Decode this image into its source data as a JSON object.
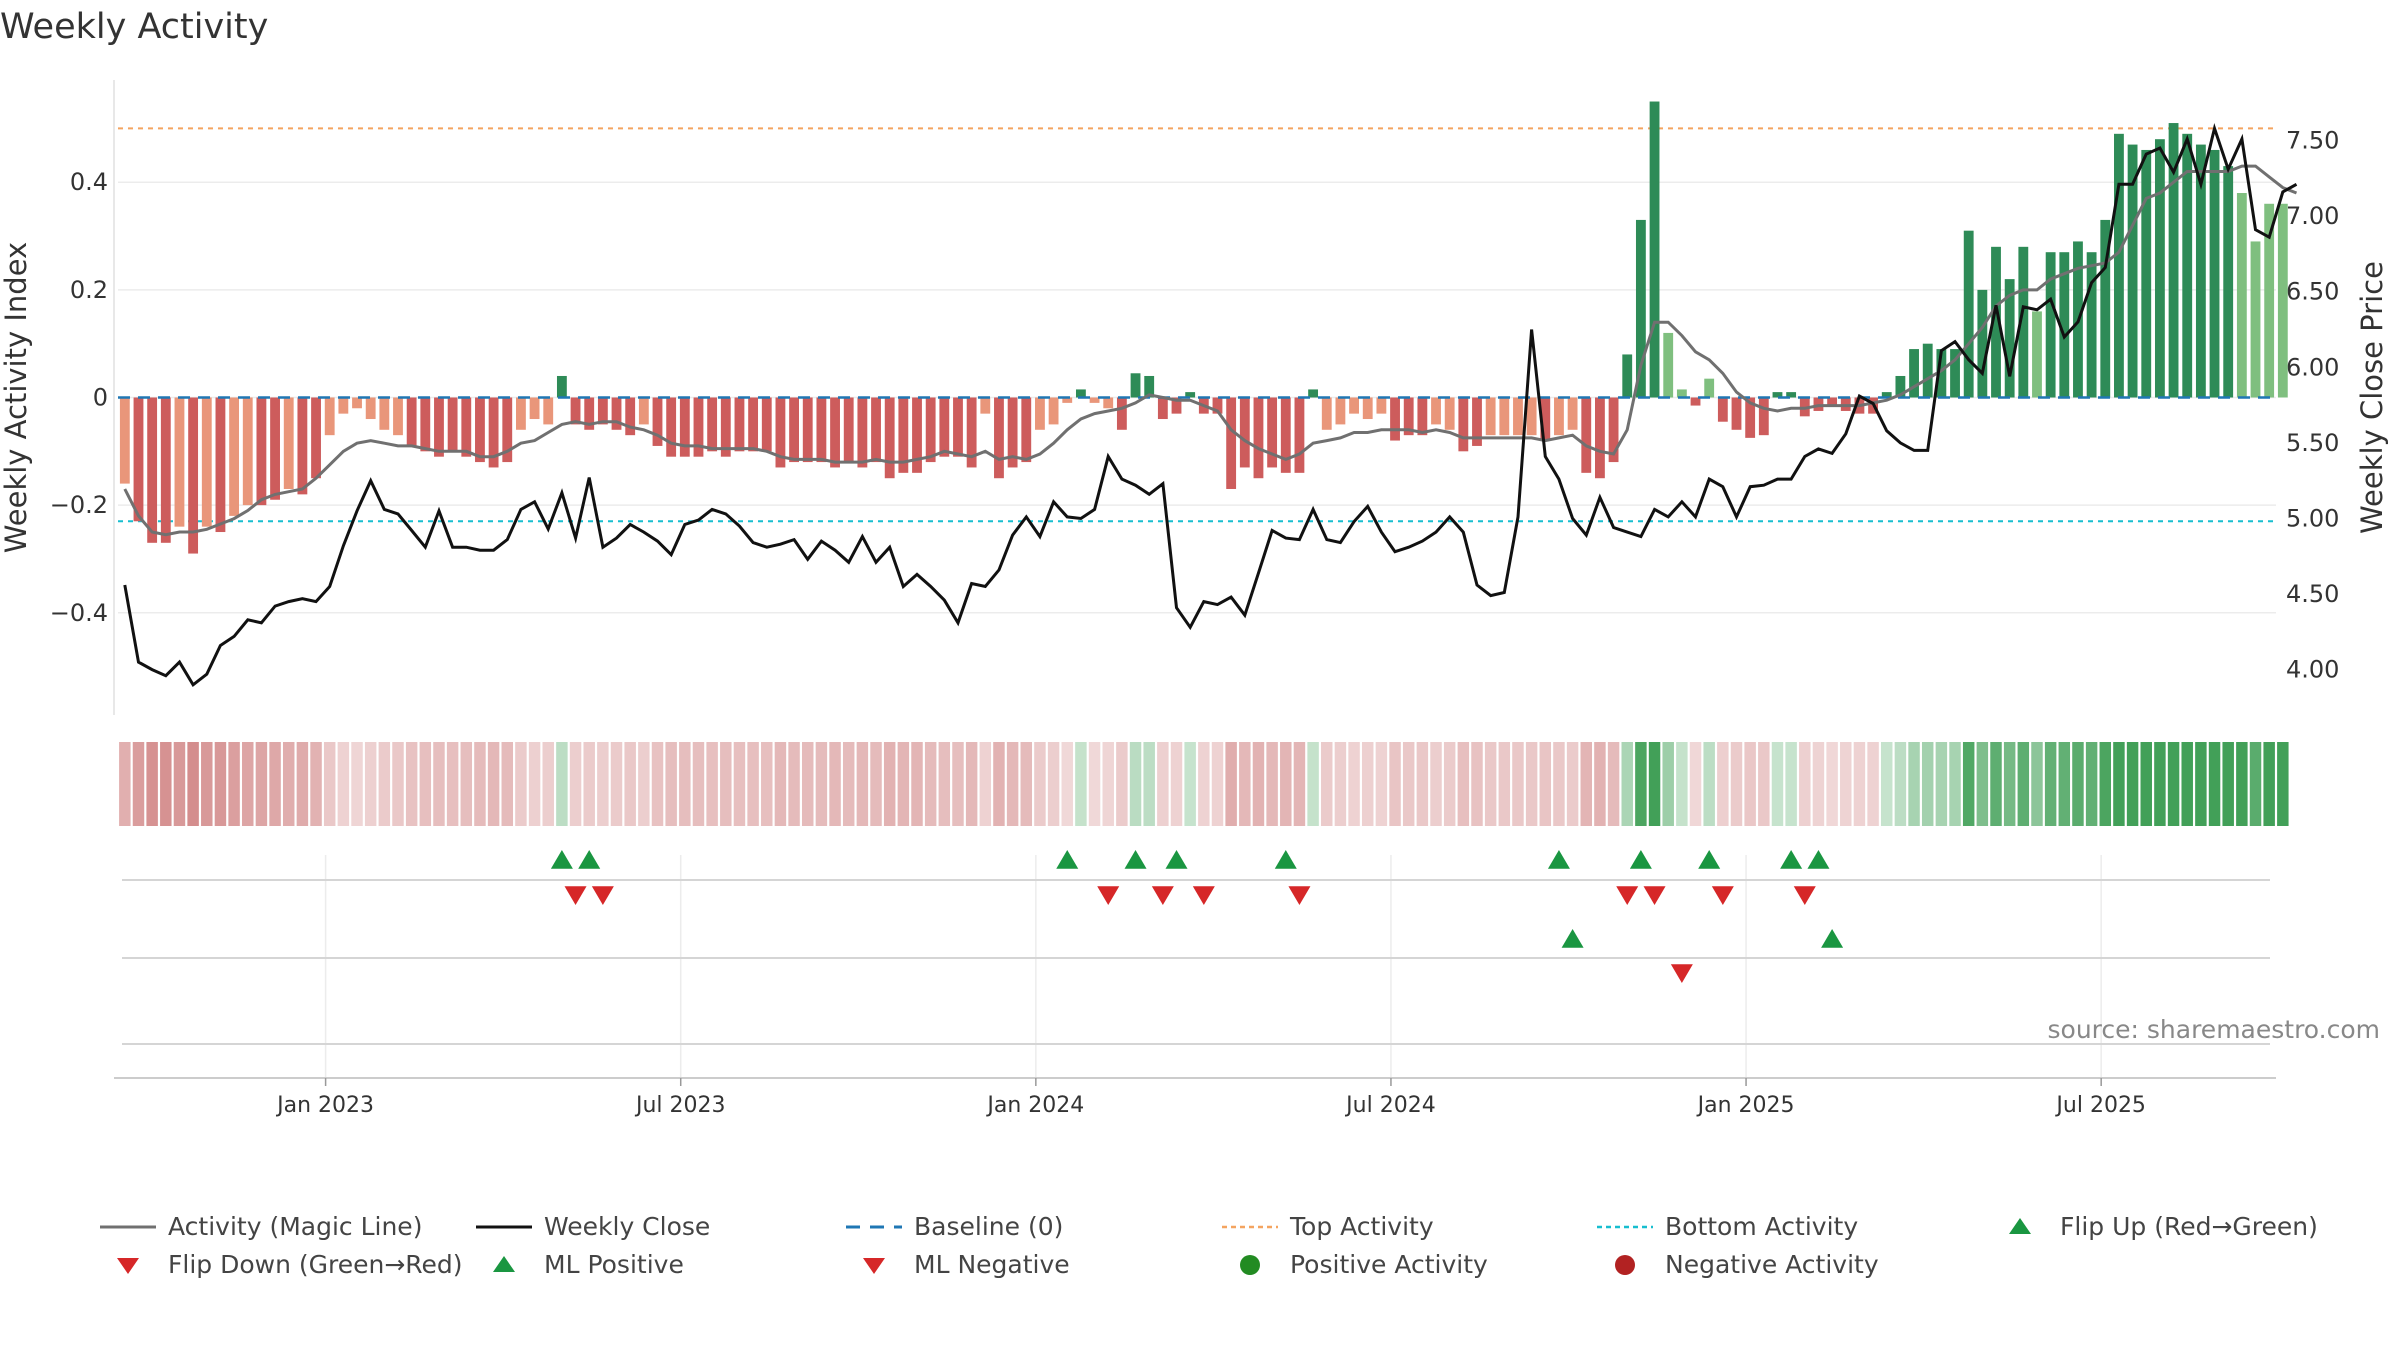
{
  "chart_data": {
    "type": "bar",
    "title": "Weekly Activity",
    "ylabel_left": "Weekly Activity Index",
    "ylabel_right": "Weekly Close Price",
    "y_left_ticks": [
      "0.4",
      "0.2",
      "0",
      "−0.2",
      "−0.4"
    ],
    "y_left_tick_values": [
      0.4,
      0.2,
      0,
      -0.2,
      -0.4
    ],
    "y_right_ticks": [
      "7.50",
      "7.00",
      "6.50",
      "6.00",
      "5.50",
      "5.00",
      "4.50",
      "4.00"
    ],
    "y_right_tick_values": [
      7.5,
      7.0,
      6.5,
      6.0,
      5.5,
      5.0,
      4.5,
      4.0
    ],
    "ylim_left": [
      -0.59,
      0.59
    ],
    "ylim_right": [
      3.7,
      7.9
    ],
    "top_activity": 0.5,
    "bottom_activity": -0.23,
    "x_ticks": [
      "Jan 2023",
      "Jul 2023",
      "Jan 2024",
      "Jul 2024",
      "Jan 2025",
      "Jul 2025"
    ],
    "x_tick_weeks": [
      15.2,
      41.2,
      67.2,
      93.2,
      119.2,
      145.2
    ],
    "weeks": 158,
    "activity": [
      -0.16,
      -0.23,
      -0.27,
      -0.27,
      -0.24,
      -0.29,
      -0.24,
      -0.25,
      -0.22,
      -0.2,
      -0.2,
      -0.19,
      -0.17,
      -0.18,
      -0.15,
      -0.07,
      -0.03,
      -0.02,
      -0.04,
      -0.06,
      -0.07,
      -0.09,
      -0.1,
      -0.11,
      -0.1,
      -0.11,
      -0.12,
      -0.13,
      -0.12,
      -0.06,
      -0.04,
      -0.05,
      0.04,
      -0.05,
      -0.06,
      -0.05,
      -0.06,
      -0.07,
      -0.05,
      -0.09,
      -0.11,
      -0.11,
      -0.11,
      -0.1,
      -0.11,
      -0.1,
      -0.1,
      -0.1,
      -0.13,
      -0.12,
      -0.12,
      -0.12,
      -0.13,
      -0.12,
      -0.13,
      -0.12,
      -0.15,
      -0.14,
      -0.14,
      -0.12,
      -0.11,
      -0.11,
      -0.13,
      -0.03,
      -0.15,
      -0.13,
      -0.12,
      -0.06,
      -0.05,
      -0.01,
      0.015,
      -0.01,
      -0.02,
      -0.06,
      0.045,
      0.04,
      -0.04,
      -0.03,
      0.01,
      -0.03,
      -0.03,
      -0.17,
      -0.13,
      -0.15,
      -0.13,
      -0.14,
      -0.14,
      0.015,
      -0.06,
      -0.05,
      -0.03,
      -0.04,
      -0.03,
      -0.08,
      -0.07,
      -0.07,
      -0.05,
      -0.06,
      -0.1,
      -0.09,
      -0.07,
      -0.07,
      -0.07,
      -0.07,
      -0.08,
      -0.07,
      -0.06,
      -0.14,
      -0.15,
      -0.12,
      0.08,
      0.33,
      0.55,
      0.12,
      0.015,
      -0.015,
      0.035,
      -0.045,
      -0.06,
      -0.075,
      -0.07,
      0.01,
      0.01,
      -0.035,
      -0.025,
      -0.015,
      -0.025,
      -0.03,
      -0.03,
      0.01,
      0.04,
      0.09,
      0.1,
      0.09,
      0.09,
      0.31,
      0.2,
      0.28,
      0.22,
      0.28,
      0.16,
      0.27,
      0.27,
      0.29,
      0.27,
      0.33,
      0.49,
      0.47,
      0.46,
      0.48,
      0.51,
      0.49,
      0.47,
      0.46,
      0.43,
      0.38,
      0.29,
      0.36,
      0.36
    ],
    "magic_line": [
      -0.17,
      -0.22,
      -0.25,
      -0.255,
      -0.25,
      -0.25,
      -0.245,
      -0.235,
      -0.225,
      -0.21,
      -0.19,
      -0.18,
      -0.175,
      -0.17,
      -0.15,
      -0.125,
      -0.1,
      -0.085,
      -0.08,
      -0.085,
      -0.09,
      -0.09,
      -0.095,
      -0.1,
      -0.1,
      -0.1,
      -0.11,
      -0.11,
      -0.1,
      -0.085,
      -0.08,
      -0.065,
      -0.05,
      -0.045,
      -0.05,
      -0.045,
      -0.045,
      -0.055,
      -0.06,
      -0.07,
      -0.085,
      -0.09,
      -0.09,
      -0.095,
      -0.095,
      -0.095,
      -0.095,
      -0.1,
      -0.11,
      -0.115,
      -0.115,
      -0.115,
      -0.12,
      -0.12,
      -0.12,
      -0.115,
      -0.12,
      -0.12,
      -0.115,
      -0.11,
      -0.1,
      -0.105,
      -0.11,
      -0.1,
      -0.115,
      -0.11,
      -0.115,
      -0.105,
      -0.085,
      -0.06,
      -0.04,
      -0.03,
      -0.025,
      -0.02,
      -0.01,
      0.005,
      0.0,
      -0.005,
      -0.005,
      -0.015,
      -0.025,
      -0.06,
      -0.08,
      -0.095,
      -0.105,
      -0.115,
      -0.105,
      -0.085,
      -0.08,
      -0.075,
      -0.065,
      -0.065,
      -0.06,
      -0.06,
      -0.06,
      -0.065,
      -0.06,
      -0.065,
      -0.075,
      -0.075,
      -0.075,
      -0.075,
      -0.075,
      -0.075,
      -0.08,
      -0.075,
      -0.07,
      -0.09,
      -0.1,
      -0.105,
      -0.06,
      0.06,
      0.14,
      0.14,
      0.115,
      0.085,
      0.07,
      0.045,
      0.01,
      -0.01,
      -0.02,
      -0.025,
      -0.02,
      -0.02,
      -0.015,
      -0.015,
      -0.015,
      -0.015,
      -0.01,
      -0.005,
      0.005,
      0.02,
      0.035,
      0.05,
      0.07,
      0.1,
      0.13,
      0.17,
      0.19,
      0.2,
      0.2,
      0.22,
      0.23,
      0.24,
      0.245,
      0.25,
      0.27,
      0.32,
      0.37,
      0.38,
      0.4,
      0.42,
      0.42,
      0.42,
      0.42,
      0.43,
      0.43,
      0.41,
      0.39,
      0.38
    ],
    "close": [
      4.56,
      4.05,
      4.0,
      3.96,
      4.05,
      3.9,
      3.97,
      4.16,
      4.22,
      4.33,
      4.31,
      4.42,
      4.45,
      4.47,
      4.45,
      4.55,
      4.82,
      5.05,
      5.25,
      5.06,
      5.03,
      4.92,
      4.81,
      5.05,
      4.81,
      4.81,
      4.79,
      4.79,
      4.86,
      5.06,
      5.11,
      4.93,
      5.17,
      4.87,
      5.27,
      4.81,
      4.87,
      4.96,
      4.91,
      4.85,
      4.76,
      4.96,
      4.99,
      5.06,
      5.03,
      4.95,
      4.84,
      4.81,
      4.83,
      4.86,
      4.73,
      4.85,
      4.79,
      4.71,
      4.88,
      4.71,
      4.81,
      4.55,
      4.63,
      4.55,
      4.46,
      4.31,
      4.57,
      4.55,
      4.66,
      4.89,
      5.01,
      4.88,
      5.11,
      5.01,
      5.0,
      5.06,
      5.41,
      5.26,
      5.22,
      5.16,
      5.23,
      4.41,
      4.28,
      4.45,
      4.43,
      4.48,
      4.36,
      4.64,
      4.92,
      4.87,
      4.86,
      5.06,
      4.86,
      4.84,
      4.98,
      5.08,
      4.91,
      4.78,
      4.81,
      4.85,
      4.91,
      5.01,
      4.91,
      4.56,
      4.49,
      4.51,
      5.01,
      6.25,
      5.41,
      5.26,
      5.0,
      4.89,
      5.14,
      4.94,
      4.91,
      4.88,
      5.06,
      5.01,
      5.11,
      5.01,
      5.26,
      5.21,
      5.01,
      5.21,
      5.22,
      5.26,
      5.26,
      5.41,
      5.46,
      5.43,
      5.56,
      5.81,
      5.76,
      5.58,
      5.5,
      5.45,
      5.45,
      6.11,
      6.17,
      6.05,
      5.96,
      6.41,
      5.94,
      6.4,
      6.38,
      6.45,
      6.2,
      6.3,
      6.56,
      6.66,
      7.21,
      7.21,
      7.41,
      7.45,
      7.29,
      7.51,
      7.21,
      7.58,
      7.31,
      7.51,
      6.91,
      6.86,
      7.16,
      7.21
    ],
    "flip_up_row": [
      32,
      34,
      69,
      74,
      77,
      85,
      105,
      111,
      116,
      122,
      124
    ],
    "flip_down_row": [
      33,
      35,
      72,
      76,
      79,
      86,
      110,
      112,
      117,
      123
    ],
    "ml_positive": [
      106,
      125
    ],
    "ml_negative": [
      114
    ],
    "source": "source: sharemaestro.com",
    "legend": [
      {
        "key": "magic",
        "label": "Activity (Magic Line)"
      },
      {
        "key": "close",
        "label": "Weekly Close"
      },
      {
        "key": "baseline",
        "label": "Baseline (0)"
      },
      {
        "key": "top",
        "label": "Top Activity"
      },
      {
        "key": "bottom",
        "label": "Bottom Activity"
      },
      {
        "key": "flipup",
        "label": "Flip Up (Red→Green)"
      },
      {
        "key": "flipdown",
        "label": "Flip Down (Green→Red)"
      },
      {
        "key": "mlpos",
        "label": "ML Positive"
      },
      {
        "key": "mlneg",
        "label": "ML Negative"
      },
      {
        "key": "posact",
        "label": "Positive Activity"
      },
      {
        "key": "negact",
        "label": "Negative Activity"
      }
    ],
    "colors": {
      "strong_green": "#2e8b57",
      "light_green": "#7fbf7f",
      "strong_red": "#cd5c5c",
      "light_red": "#e9967a",
      "magic": "#707070",
      "close": "#111111",
      "baseline": "#1f77b4",
      "top": "#f4a460",
      "bottom": "#17becf",
      "marker_green": "#1a9641",
      "marker_red": "#d62728",
      "dot_green": "#228b22",
      "dot_red": "#b22222"
    }
  }
}
